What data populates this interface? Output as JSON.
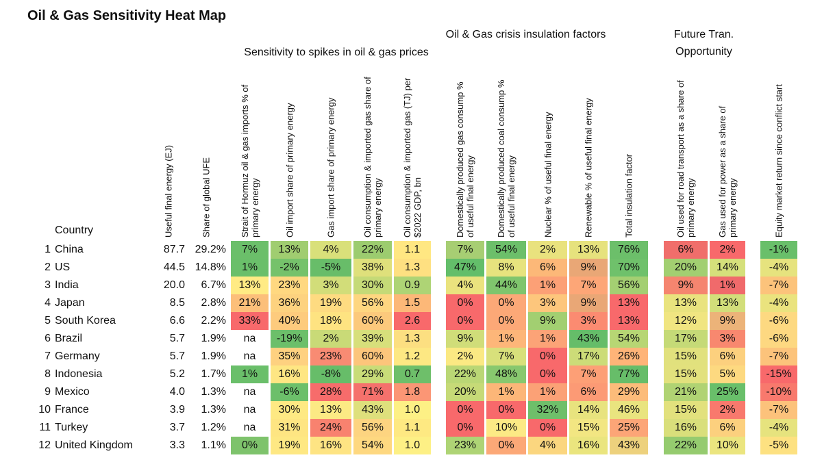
{
  "title": "Oil & Gas Sensitivity Heat Map",
  "chart_data": {
    "type": "heatmap",
    "title": "Oil & Gas Sensitivity Heat Map",
    "groups": [
      {
        "label": "Sensitivity to spikes in oil & gas prices"
      },
      {
        "label": "Oil & Gas crisis insulation factors"
      },
      {
        "label": "Future Tran. Opportunity"
      }
    ],
    "country_header": "Country",
    "columns": [
      "Useful final energy (EJ)",
      "Share of global UFE",
      "Strait of Hormuz oil & gas imports % of primary energy",
      "Oil import share of primary energy",
      "Gas import share of primary energy",
      "Oil consumption & imported gas share of primary energy",
      "Oil consumption & imported gas (TJ) per $2022 GDP, bn",
      "Domestically produced gas consump % of useful final energy",
      "Domestically produced coal consump % of useful final energy",
      "Nuclear % of useful final energy",
      "Renewable % of useful final energy",
      "Total insulation factor",
      "Oil used for road transport as a share of primary energy",
      "Gas used for power as a share of primary energy",
      "Equity market return since conflict start"
    ],
    "rows": [
      {
        "rank": "1",
        "country": "China",
        "values": [
          "87.7",
          "29.2%",
          "7%",
          "13%",
          "4%",
          "22%",
          "1.1",
          "7%",
          "54%",
          "2%",
          "13%",
          "76%",
          "6%",
          "2%",
          "-1%"
        ]
      },
      {
        "rank": "2",
        "country": "US",
        "values": [
          "44.5",
          "14.8%",
          "1%",
          "-2%",
          "-5%",
          "38%",
          "1.3",
          "47%",
          "8%",
          "6%",
          "9%",
          "70%",
          "20%",
          "14%",
          "-4%"
        ]
      },
      {
        "rank": "3",
        "country": "India",
        "values": [
          "20.0",
          "6.7%",
          "13%",
          "23%",
          "3%",
          "30%",
          "0.9",
          "4%",
          "44%",
          "1%",
          "7%",
          "56%",
          "9%",
          "1%",
          "-7%"
        ]
      },
      {
        "rank": "4",
        "country": "Japan",
        "values": [
          "8.5",
          "2.8%",
          "21%",
          "36%",
          "19%",
          "56%",
          "1.5",
          "0%",
          "0%",
          "3%",
          "9%",
          "13%",
          "13%",
          "13%",
          "-4%"
        ]
      },
      {
        "rank": "5",
        "country": "South Korea",
        "values": [
          "6.6",
          "2.2%",
          "33%",
          "40%",
          "18%",
          "60%",
          "2.6",
          "0%",
          "0%",
          "9%",
          "3%",
          "13%",
          "12%",
          "9%",
          "-6%"
        ]
      },
      {
        "rank": "6",
        "country": "Brazil",
        "values": [
          "5.7",
          "1.9%",
          "na",
          "-19%",
          "2%",
          "39%",
          "1.3",
          "9%",
          "1%",
          "1%",
          "43%",
          "54%",
          "17%",
          "3%",
          "-6%"
        ]
      },
      {
        "rank": "7",
        "country": "Germany",
        "values": [
          "5.7",
          "1.9%",
          "na",
          "35%",
          "23%",
          "60%",
          "1.2",
          "2%",
          "7%",
          "0%",
          "17%",
          "26%",
          "15%",
          "6%",
          "-7%"
        ]
      },
      {
        "rank": "8",
        "country": "Indonesia",
        "values": [
          "5.2",
          "1.7%",
          "1%",
          "16%",
          "-8%",
          "29%",
          "0.7",
          "22%",
          "48%",
          "0%",
          "7%",
          "77%",
          "15%",
          "5%",
          "-15%"
        ]
      },
      {
        "rank": "9",
        "country": "Mexico",
        "values": [
          "4.0",
          "1.3%",
          "na",
          "-6%",
          "28%",
          "71%",
          "1.8",
          "20%",
          "1%",
          "1%",
          "6%",
          "29%",
          "21%",
          "25%",
          "-10%"
        ]
      },
      {
        "rank": "10",
        "country": "France",
        "values": [
          "3.9",
          "1.3%",
          "na",
          "30%",
          "13%",
          "43%",
          "1.0",
          "0%",
          "0%",
          "32%",
          "14%",
          "46%",
          "15%",
          "2%",
          "-7%"
        ]
      },
      {
        "rank": "11",
        "country": "Turkey",
        "values": [
          "3.7",
          "1.2%",
          "na",
          "31%",
          "24%",
          "56%",
          "1.1",
          "0%",
          "10%",
          "0%",
          "15%",
          "25%",
          "16%",
          "6%",
          "-4%"
        ]
      },
      {
        "rank": "12",
        "country": "United Kingdom",
        "values": [
          "3.3",
          "1.1%",
          "0%",
          "19%",
          "16%",
          "54%",
          "1.0",
          "23%",
          "0%",
          "4%",
          "16%",
          "43%",
          "22%",
          "10%",
          "-5%"
        ]
      }
    ],
    "cell_colors": [
      [
        null,
        null,
        "#6bbf6a",
        "#a0cd70",
        "#d9e07a",
        "#9ccc6f",
        "#ffe782",
        null,
        "#a7ce73",
        "#6cbf6a",
        "#e9e27e",
        "#e6e27d",
        "#6cbf6a",
        null,
        "#f06e6b",
        "#f8696b",
        null,
        "#69bf6a"
      ],
      [
        null,
        null,
        "#6abf6a",
        "#75c26b",
        "#68bd69",
        "#dfe07b",
        "#fee081",
        null,
        "#63be6a",
        "#e7e37e",
        "#fcb878",
        "#e9a776",
        "#6fc16b",
        null,
        "#a2cf71",
        "#d5e07b",
        null,
        "#e6e37e"
      ],
      [
        null,
        null,
        "#ffeb84",
        "#ffd880",
        "#d2dd79",
        "#c5da77",
        "#aed475",
        null,
        "#eae37e",
        "#7fc56d",
        "#fca076",
        "#fda677",
        "#a4cf72",
        null,
        "#f5856f",
        "#f06a6b",
        null,
        "#fcc37b"
      ],
      [
        null,
        null,
        "#fcbf7a",
        "#fdd27f",
        "#fedb81",
        "#fed680",
        "#fcb878",
        null,
        "#f8696b",
        "#fca877",
        "#fdc67c",
        "#e9a776",
        "#f8696b",
        null,
        "#e9e37e",
        "#d2de7a",
        null,
        "#eae37e"
      ],
      [
        null,
        null,
        "#f8696b",
        "#fdcb7d",
        "#fee381",
        "#fcc97c",
        "#f8696b",
        null,
        "#f8696b",
        "#fca877",
        "#a2cf71",
        "#fb8b71",
        "#f8696b",
        null,
        "#f0e581",
        "#ecb379",
        null,
        "#fdd981"
      ],
      [
        null,
        null,
        "#ffffff",
        "#6cbf6a",
        "#c9da77",
        "#d7df7b",
        "#fcdf81",
        null,
        "#d0dd79",
        "#fdb679",
        "#fca377",
        "#65bd69",
        "#b7d674",
        null,
        "#c5da77",
        "#f8886f",
        null,
        "#fdd881"
      ],
      [
        null,
        null,
        "#ffffff",
        "#fed180",
        "#f88b73",
        "#fcc57b",
        "#fde883",
        null,
        "#fbe983",
        "#d8e07b",
        "#f8696b",
        "#ccdc78",
        "#feb478",
        null,
        "#e1e17d",
        "#fcd07e",
        null,
        "#fcc37b"
      ],
      [
        null,
        null,
        "#6abf6a",
        "#fee683",
        "#67bd69",
        "#c8dc78",
        "#6ebf6a",
        null,
        "#bad775",
        "#88c86e",
        "#f8696b",
        "#fd9f76",
        "#67bd69",
        null,
        "#e2e17d",
        "#fdd980",
        null,
        "#f8696b"
      ],
      [
        null,
        null,
        "#ffffff",
        "#6cbf6a",
        "#f76c6b",
        "#f5716c",
        "#fb9675",
        null,
        "#c6da77",
        "#fcb678",
        "#fba176",
        "#fc9a75",
        "#fcbc7a",
        null,
        "#b0d373",
        "#69bf6a",
        null,
        "#f8796d"
      ],
      [
        null,
        null,
        "#ffffff",
        "#fee983",
        "#fcea84",
        "#dee07c",
        "#fdf085",
        null,
        "#f8696b",
        "#f8696b",
        "#6ebf6a",
        "#e8e37e",
        "#e9e47f",
        null,
        "#e2e17d",
        "#f8796d",
        null,
        "#fcc27b"
      ],
      [
        null,
        null,
        "#ffffff",
        "#fee582",
        "#f8826f",
        "#fdd480",
        "#fee982",
        null,
        "#f8696b",
        "#fcea85",
        "#f8696b",
        "#f2e682",
        "#fca577",
        null,
        "#d9df7b",
        "#fcd07e",
        null,
        "#e6e37e"
      ],
      [
        null,
        null,
        "#7ec36c",
        "#fee883",
        "#fee483",
        "#fed880",
        "#fdf085",
        null,
        "#aed475",
        "#fca877",
        "#fbd67f",
        "#eae57e",
        "#edd17d",
        null,
        "#95cb6f",
        "#ebe57f",
        null,
        "#fde181"
      ]
    ]
  }
}
